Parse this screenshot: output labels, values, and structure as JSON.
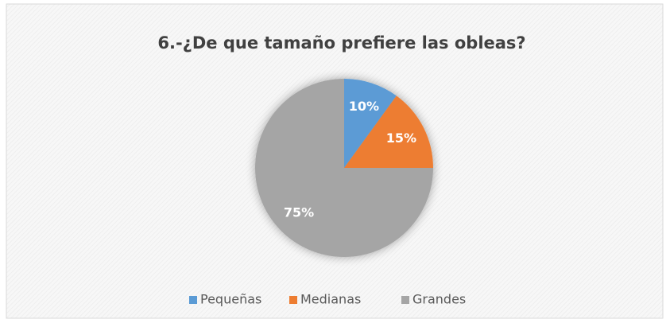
{
  "chart_data": {
    "type": "pie",
    "title": "6.-¿De que tamaño prefiere las obleas?",
    "categories": [
      "Pequeñas",
      "Medianas",
      "Grandes"
    ],
    "values": [
      10,
      15,
      75
    ],
    "value_labels": [
      "10%",
      "15%",
      "75%"
    ],
    "colors": [
      "#5b9bd5",
      "#ed7d31",
      "#a5a5a5"
    ],
    "legend": "bottom"
  }
}
